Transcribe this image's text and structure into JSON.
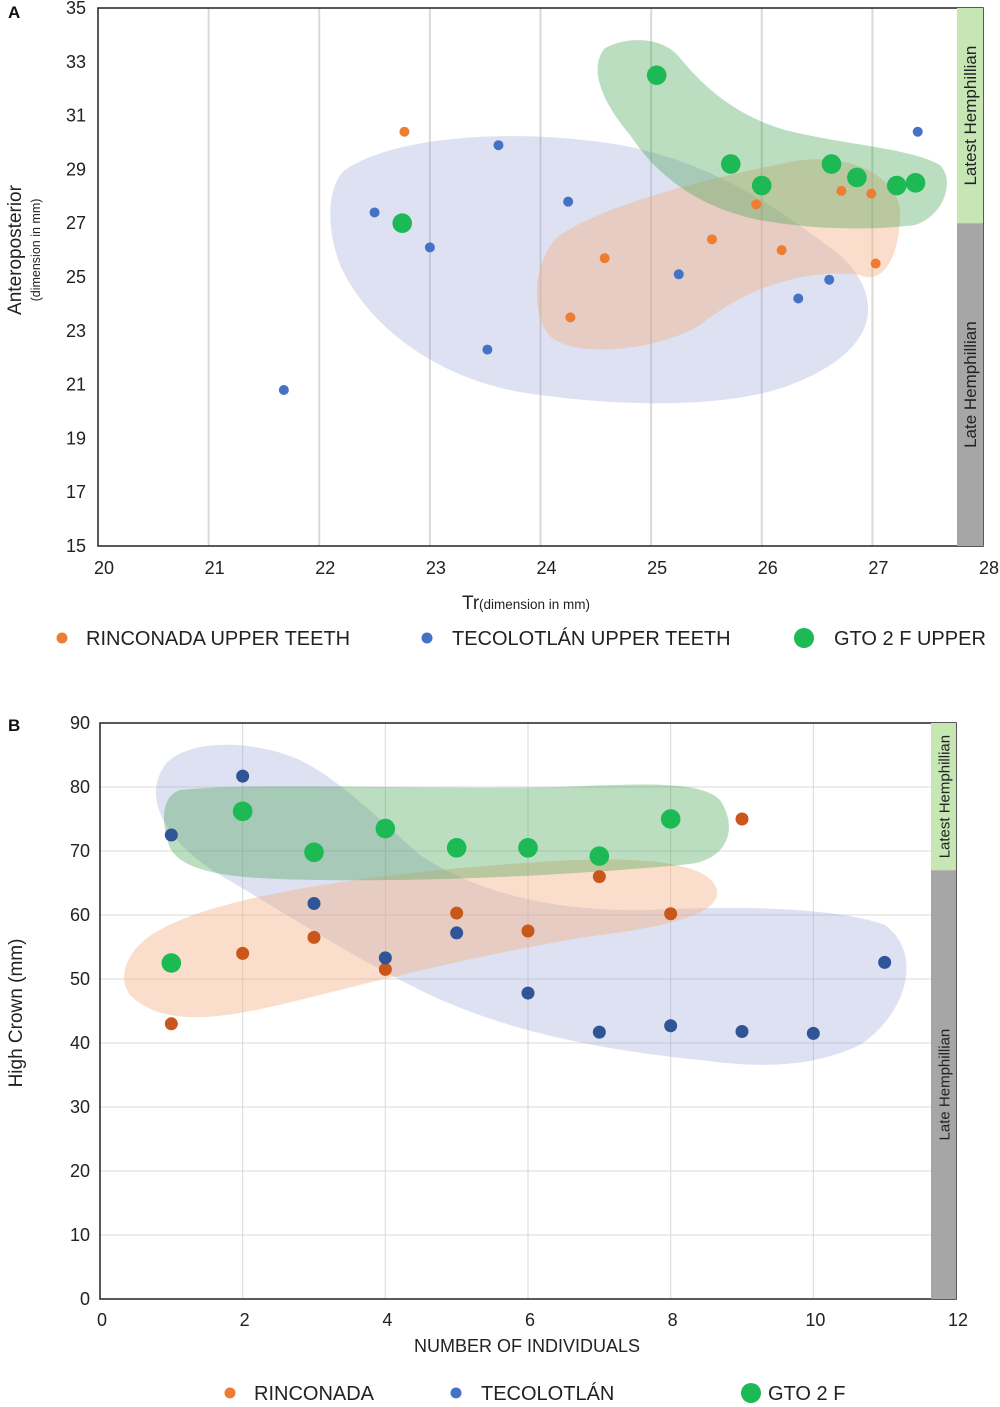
{
  "colors": {
    "rinconada": "#EE7D33",
    "rinconada_b": "#C9561A",
    "tecolotlan": "#4472C4",
    "tecolotlan_b": "#2F5597",
    "gto": "#1DB954",
    "gto_fill": "#3FA14A",
    "rinconada_fill": "#F4B183",
    "tecolotlan_fill": "#8E9BD2",
    "latest_band": "#C6E7B4",
    "late_band": "#A6A6A6",
    "grid": "#D9D9D9",
    "axis": "#222222"
  },
  "chart_data": [
    {
      "panel_label": "A",
      "type": "scatter",
      "xlabel_main": "Tr",
      "xlabel_sub": "(dimension in mm)",
      "ylabel_main": "Anteroposterior",
      "ylabel_sub": "(dimension in mm)",
      "xlim": [
        20,
        28
      ],
      "ylim": [
        15,
        35
      ],
      "xticks": [
        20,
        21,
        22,
        23,
        24,
        25,
        26,
        27,
        28
      ],
      "yticks": [
        15,
        17,
        19,
        21,
        23,
        25,
        27,
        29,
        31,
        33,
        35
      ],
      "grid": "vertical",
      "bands": [
        {
          "label": "Latest Hemphillian",
          "from": 27,
          "to": 35,
          "color_key": "latest_band"
        },
        {
          "label": "Late Hemphillian",
          "from": 15,
          "to": 27,
          "color_key": "late_band"
        }
      ],
      "series": [
        {
          "name": "RINCONADA UPPER TEETH",
          "key": "rinconada",
          "marker": "small",
          "points": [
            [
              22.77,
              30.4
            ],
            [
              24.27,
              23.5
            ],
            [
              24.58,
              25.7
            ],
            [
              25.55,
              26.4
            ],
            [
              25.95,
              27.7
            ],
            [
              26.18,
              26.0
            ],
            [
              26.72,
              28.2
            ],
            [
              26.99,
              28.1
            ],
            [
              27.03,
              25.5
            ]
          ]
        },
        {
          "name": "TECOLOTLÁN UPPER TEETH",
          "key": "tecolotlan",
          "marker": "small",
          "points": [
            [
              21.68,
              20.8
            ],
            [
              22.5,
              27.4
            ],
            [
              23.0,
              26.1
            ],
            [
              23.52,
              22.3
            ],
            [
              23.62,
              29.9
            ],
            [
              24.25,
              27.8
            ],
            [
              25.25,
              25.1
            ],
            [
              26.33,
              24.2
            ],
            [
              26.61,
              24.9
            ],
            [
              27.41,
              30.4
            ]
          ]
        },
        {
          "name": "GTO 2 F UPPER",
          "key": "gto",
          "marker": "large",
          "points": [
            [
              22.75,
              27.0
            ],
            [
              25.05,
              32.5
            ],
            [
              25.72,
              29.2
            ],
            [
              26.0,
              28.4
            ],
            [
              26.63,
              29.2
            ],
            [
              26.86,
              28.7
            ],
            [
              27.22,
              28.4
            ],
            [
              27.39,
              28.5
            ]
          ]
        }
      ]
    },
    {
      "panel_label": "B",
      "type": "scatter",
      "xlabel_main": "NUMBER OF INDIVIDUALS",
      "ylabel_main": "High Crown (mm)",
      "xlim": [
        0,
        12
      ],
      "ylim": [
        0,
        90
      ],
      "xticks": [
        0,
        2,
        4,
        6,
        8,
        10,
        12
      ],
      "yticks": [
        0,
        10,
        20,
        30,
        40,
        50,
        60,
        70,
        80,
        90
      ],
      "grid": "both",
      "bands": [
        {
          "label": "Latest Hemphillian",
          "from": 67,
          "to": 90,
          "color_key": "latest_band"
        },
        {
          "label": "Late Hemphillian",
          "from": 0,
          "to": 67,
          "color_key": "late_band"
        }
      ],
      "series": [
        {
          "name": "RINCONADA",
          "key": "rinconada_b",
          "marker": "medium",
          "points": [
            [
              1,
              43
            ],
            [
              2,
              54
            ],
            [
              3,
              56.5
            ],
            [
              4,
              51.5
            ],
            [
              5,
              60.3
            ],
            [
              6,
              57.5
            ],
            [
              7,
              66
            ],
            [
              8,
              60.2
            ],
            [
              9,
              75
            ]
          ]
        },
        {
          "name": "TECOLOTLÁN",
          "key": "tecolotlan_b",
          "marker": "medium",
          "points": [
            [
              1,
              72.5
            ],
            [
              2,
              81.7
            ],
            [
              3,
              61.8
            ],
            [
              4,
              53.3
            ],
            [
              5,
              57.2
            ],
            [
              6,
              47.8
            ],
            [
              7,
              41.7
            ],
            [
              8,
              42.7
            ],
            [
              9,
              41.8
            ],
            [
              10,
              41.5
            ],
            [
              11,
              52.6
            ]
          ]
        },
        {
          "name": "GTO 2 F",
          "key": "gto",
          "marker": "large",
          "points": [
            [
              1,
              52.5
            ],
            [
              2,
              76.2
            ],
            [
              3,
              69.8
            ],
            [
              4,
              73.5
            ],
            [
              5,
              70.5
            ],
            [
              6,
              70.5
            ],
            [
              7,
              69.2
            ],
            [
              8,
              75.0
            ]
          ]
        }
      ],
      "legend": [
        {
          "name": "RINCONADA",
          "key": "rinconada"
        },
        {
          "name": "TECOLOTLÁN",
          "key": "tecolotlan"
        },
        {
          "name": "GTO 2 F",
          "key": "gto"
        }
      ]
    }
  ]
}
